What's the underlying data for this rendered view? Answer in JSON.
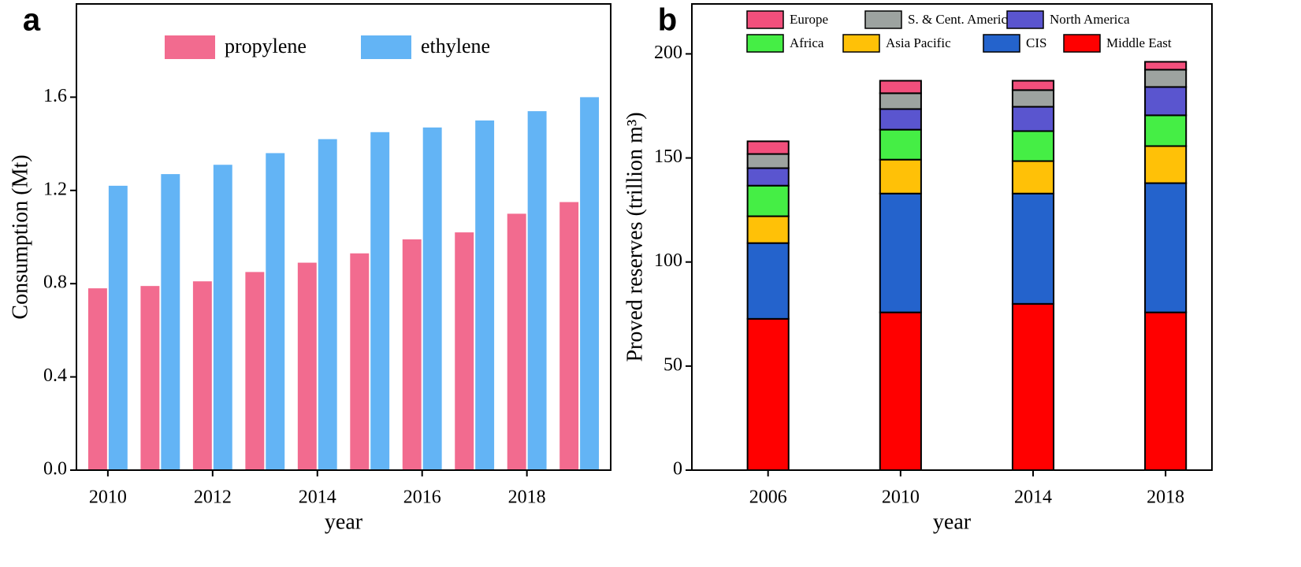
{
  "chart_data": [
    {
      "type": "bar",
      "panel_label": "a",
      "x_label": "year",
      "y_label": "Consumption (Mt)",
      "x": [
        2010,
        2011,
        2012,
        2013,
        2014,
        2015,
        2016,
        2017,
        2018,
        2019
      ],
      "xlim": [
        2009.4,
        2019.6
      ],
      "xticks": [
        2010,
        2012,
        2014,
        2016,
        2018
      ],
      "ylim": [
        0,
        2.0
      ],
      "yticks": [
        {
          "value": 0,
          "label": "0.0"
        },
        0.4,
        0.8,
        1.2,
        1.6
      ],
      "stacked": false,
      "legend": "top",
      "series": [
        {
          "name": "propylene",
          "color": "#f26b8f",
          "values": [
            0.78,
            0.79,
            0.81,
            0.85,
            0.89,
            0.93,
            0.99,
            1.02,
            1.1,
            1.15
          ]
        },
        {
          "name": "ethylene",
          "color": "#63b4f5",
          "values": [
            1.22,
            1.27,
            1.31,
            1.36,
            1.42,
            1.45,
            1.47,
            1.5,
            1.54,
            1.6
          ]
        }
      ]
    },
    {
      "type": "bar",
      "panel_label": "b",
      "x_label": "year",
      "y_label": "Proved reserves (trillion m³)",
      "x": [
        2006,
        2010,
        2014,
        2018
      ],
      "xlim": [
        2003.7,
        2019.4
      ],
      "xticks": [
        2006,
        2010,
        2014,
        2018
      ],
      "ylim": [
        0,
        224
      ],
      "yticks": [
        0,
        50,
        100,
        150,
        200
      ],
      "stacked": true,
      "legend": "top",
      "series": [
        {
          "name": "Middle East",
          "color": "#ff0000",
          "values": [
            72.7,
            75.8,
            79.9,
            75.8
          ]
        },
        {
          "name": "CIS",
          "color": "#2463cc",
          "values": [
            36.4,
            57.1,
            53.0,
            62.1
          ]
        },
        {
          "name": "Asia Pacific",
          "color": "#ffc107",
          "values": [
            12.9,
            16.3,
            15.6,
            17.8
          ]
        },
        {
          "name": "Africa",
          "color": "#45ee45",
          "values": [
            14.7,
            14.4,
            14.4,
            14.8
          ]
        },
        {
          "name": "North America",
          "color": "#5a55cf",
          "values": [
            8.4,
            9.9,
            11.7,
            13.6
          ]
        },
        {
          "name": "S. & Cent. America",
          "color": "#9da3a0",
          "values": [
            6.8,
            7.6,
            8.0,
            8.3
          ]
        },
        {
          "name": "Europe",
          "color": "#f24f7c",
          "values": [
            6.1,
            6.0,
            4.5,
            3.8
          ]
        }
      ]
    }
  ]
}
